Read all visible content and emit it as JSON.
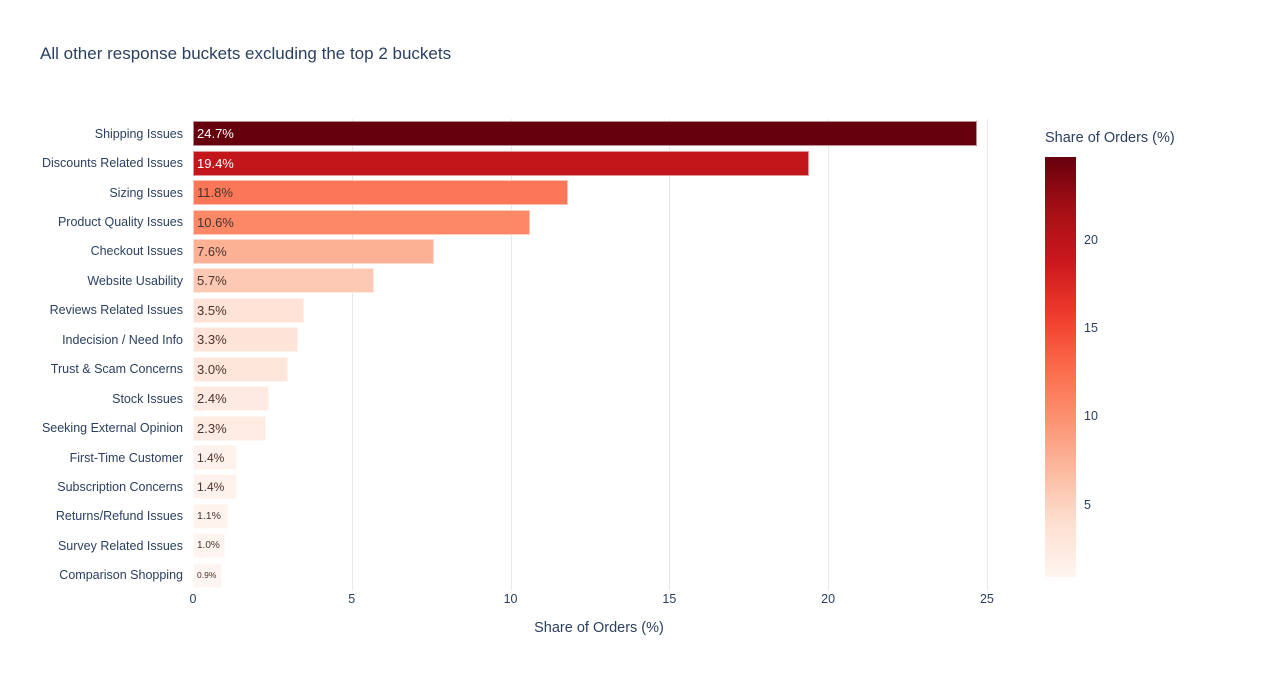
{
  "title": "All other response buckets excluding the top 2 buckets",
  "chart_data": {
    "type": "bar",
    "orientation": "horizontal",
    "title": "All other response buckets excluding the top 2 buckets",
    "categories": [
      "Shipping Issues",
      "Discounts Related Issues",
      "Sizing Issues",
      "Product Quality Issues",
      "Checkout Issues",
      "Website Usability",
      "Reviews Related Issues",
      "Indecision / Need Info",
      "Trust & Scam Concerns",
      "Stock Issues",
      "Seeking External Opinion",
      "First-Time Customer",
      "Subscription Concerns",
      "Returns/Refund Issues",
      "Survey Related Issues",
      "Comparison Shopping"
    ],
    "values": [
      24.7,
      19.4,
      11.8,
      10.6,
      7.6,
      5.7,
      3.5,
      3.3,
      3.0,
      2.4,
      2.3,
      1.4,
      1.4,
      1.1,
      1.0,
      0.9
    ],
    "value_labels": [
      "24.7%",
      "19.4%",
      "11.8%",
      "10.6%",
      "7.6%",
      "5.7%",
      "3.5%",
      "3.3%",
      "3.0%",
      "2.4%",
      "2.3%",
      "1.4%",
      "1.4%",
      "1.1%",
      "1.0%",
      "0.9%"
    ],
    "bar_colors": [
      "#67000d",
      "#c3161b",
      "#fb7757",
      "#fc8868",
      "#fcb195",
      "#fdc9b4",
      "#fee3d6",
      "#fee4d8",
      "#fee6db",
      "#feeae1",
      "#feebe2",
      "#fff1eb",
      "#fff1eb",
      "#fff3ee",
      "#fff4ef",
      "#fff5f0"
    ],
    "value_text_colors": [
      "#ffffff",
      "#ffffff",
      "#4a332c",
      "#4a332c",
      "#4a332c",
      "#4a332c",
      "#4a332c",
      "#4a332c",
      "#4a332c",
      "#4a332c",
      "#4a332c",
      "#4a332c",
      "#4a332c",
      "#4a332c",
      "#4a332c",
      "#4a332c"
    ],
    "value_font_sizes": [
      13,
      13,
      13,
      13,
      13,
      13,
      13,
      13,
      13,
      13,
      13,
      12,
      12,
      10.5,
      10,
      8.5
    ],
    "xlabel": "Share of Orders (%)",
    "x_ticks": [
      0,
      5,
      10,
      15,
      20,
      25
    ],
    "x_max": 25.57,
    "grid": true,
    "legend_position": "right-colorbar",
    "colorbar": {
      "title": "Share of Orders (%)",
      "ticks": [
        20,
        15,
        10,
        5
      ],
      "cmin": 0.9,
      "cmax": 24.7,
      "colorscale_reds": [
        {
          "pos": 0,
          "color": "rgb(255,245,240)"
        },
        {
          "pos": 0.125,
          "color": "rgb(254,224,210)"
        },
        {
          "pos": 0.25,
          "color": "rgb(252,187,161)"
        },
        {
          "pos": 0.375,
          "color": "rgb(252,146,114)"
        },
        {
          "pos": 0.5,
          "color": "rgb(251,106,74)"
        },
        {
          "pos": 0.625,
          "color": "rgb(239,59,44)"
        },
        {
          "pos": 0.75,
          "color": "rgb(203,24,29)"
        },
        {
          "pos": 0.875,
          "color": "rgb(165,15,21)"
        },
        {
          "pos": 1,
          "color": "rgb(103,0,13)"
        }
      ]
    },
    "colors": {
      "text": "#2a3f5f",
      "grid": "#e8e8e8",
      "background": "#ffffff"
    }
  }
}
